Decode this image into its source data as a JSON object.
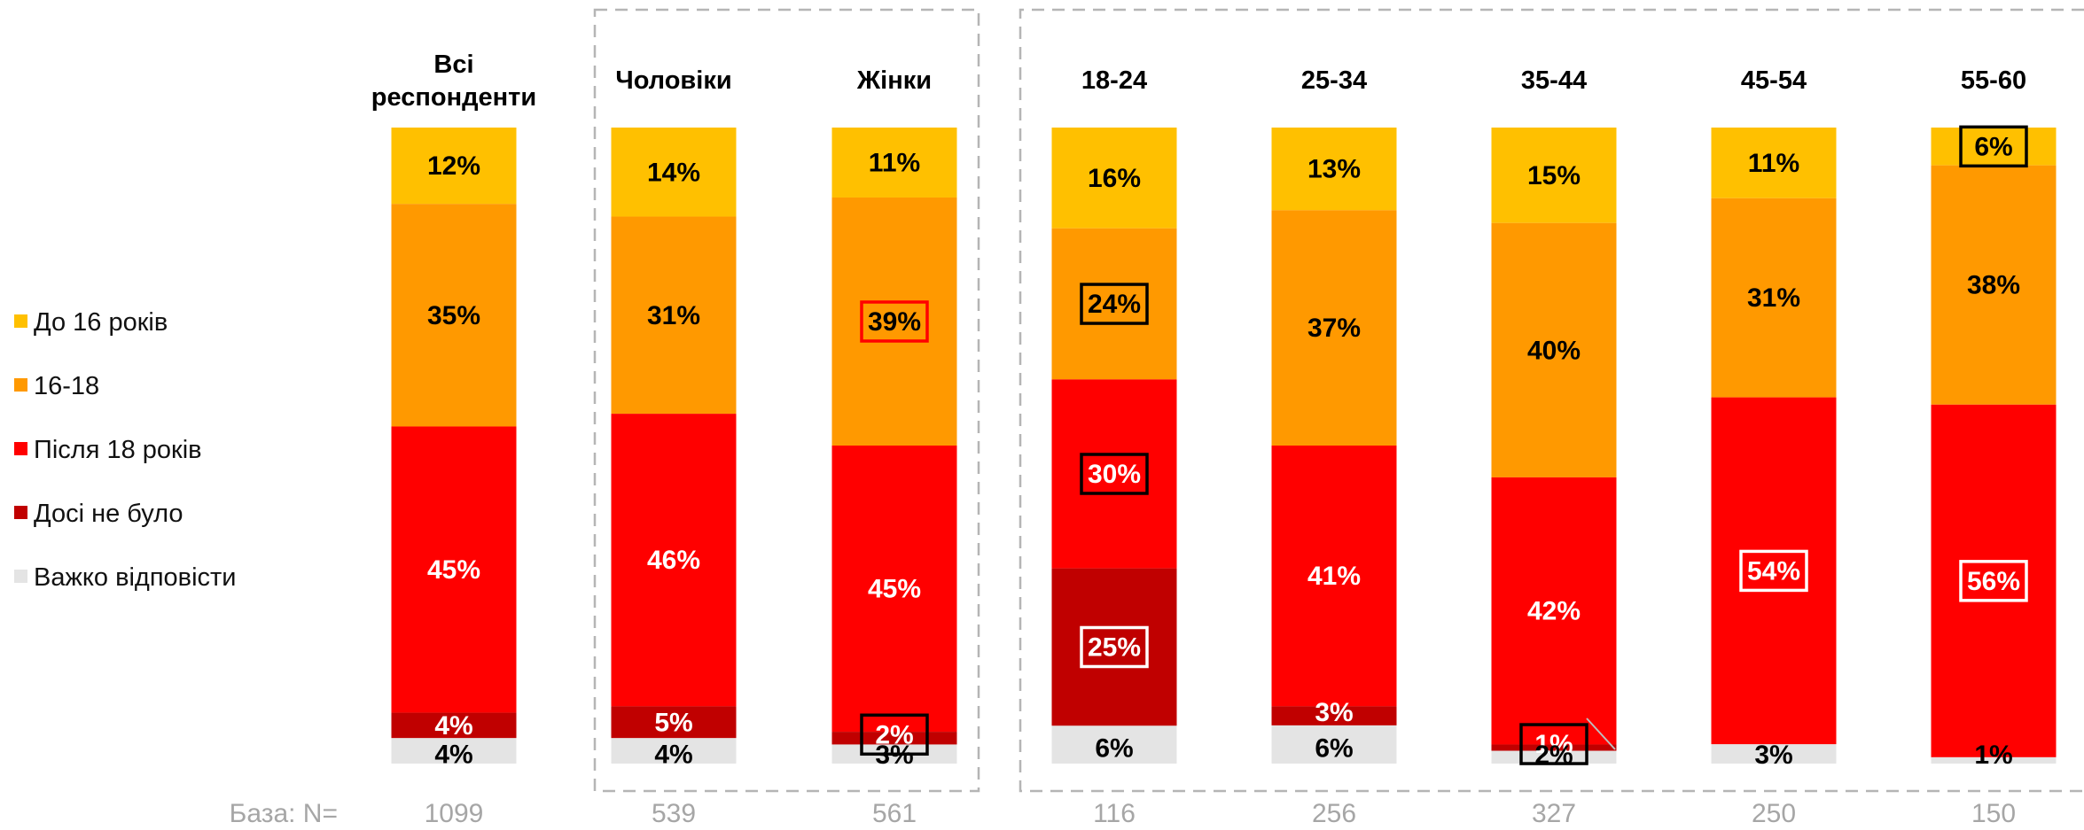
{
  "chart_data": {
    "type": "bar",
    "stacked": true,
    "normalized": true,
    "categories": [
      "Всі респонденти",
      "Чоловіки",
      "Жінки",
      "18-24",
      "25-34",
      "35-44",
      "45-54",
      "55-60"
    ],
    "category_label_lines": [
      [
        "Всі",
        "респонденти"
      ],
      [
        "Чоловіки"
      ],
      [
        "Жінки"
      ],
      [
        "18-24"
      ],
      [
        "25-34"
      ],
      [
        "35-44"
      ],
      [
        "45-54"
      ],
      [
        "55-60"
      ]
    ],
    "series": [
      {
        "name": "До 16 років",
        "color": "#FFC000",
        "values": [
          12,
          14,
          11,
          16,
          13,
          15,
          11,
          6
        ]
      },
      {
        "name": "16-18",
        "color": "#FF9900",
        "values": [
          35,
          31,
          39,
          24,
          37,
          40,
          31,
          38
        ]
      },
      {
        "name": "Після 18 років",
        "color": "#FF0000",
        "values": [
          45,
          46,
          45,
          30,
          41,
          42,
          54,
          56
        ]
      },
      {
        "name": "Досі не було",
        "color": "#C00000",
        "values": [
          4,
          5,
          2,
          25,
          3,
          1,
          0,
          0
        ]
      },
      {
        "name": "Важко відповісти",
        "color": "#E4E4E4",
        "values": [
          4,
          4,
          3,
          6,
          6,
          2,
          3,
          1
        ]
      }
    ],
    "data_labels": [
      [
        "12%",
        "35%",
        "45%",
        "4%",
        "4%"
      ],
      [
        "14%",
        "31%",
        "46%",
        "5%",
        "4%"
      ],
      [
        "11%",
        "39%",
        "45%",
        "2%",
        "3%"
      ],
      [
        "16%",
        "24%",
        "30%",
        "25%",
        "6%"
      ],
      [
        "13%",
        "37%",
        "41%",
        "3%",
        "6%"
      ],
      [
        "15%",
        "40%",
        "42%",
        "1%",
        "2%"
      ],
      [
        "11%",
        "31%",
        "54%",
        "",
        "3%"
      ],
      [
        "6%",
        "38%",
        "56%",
        "",
        "1%"
      ]
    ],
    "highlighted": [
      [],
      [],
      [
        {
          "series": 1,
          "color": "#FF0000"
        },
        {
          "series": 3,
          "color": "#000000"
        }
      ],
      [
        {
          "series": 1,
          "color": "#000000"
        },
        {
          "series": 2,
          "color": "#000000"
        },
        {
          "series": 3,
          "color": "#ffffff"
        }
      ],
      [],
      [
        {
          "series": 3,
          "color": "#000000"
        }
      ],
      [
        {
          "series": 2,
          "color": "#ffffff"
        }
      ],
      [
        {
          "series": 0,
          "color": "#000000"
        },
        {
          "series": 2,
          "color": "#ffffff"
        }
      ]
    ],
    "base_label": "База: N=",
    "base_values": [
      "1099",
      "539",
      "561",
      "116",
      "256",
      "327",
      "250",
      "150"
    ],
    "groups": [
      {
        "columns": [
          1,
          2
        ],
        "style": "dashed"
      },
      {
        "columns": [
          3,
          4,
          5,
          6,
          7
        ],
        "style": "dashed"
      }
    ],
    "legend_position": "left",
    "ylim": [
      0,
      100
    ],
    "grid": false
  }
}
